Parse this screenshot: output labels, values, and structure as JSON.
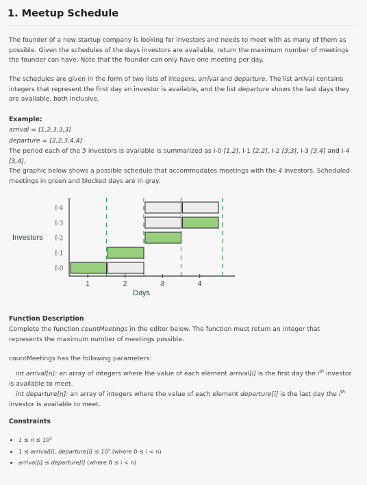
{
  "title": "1. Meetup Schedule",
  "intro": {
    "p1": "The founder of a new startup company is looking for investors and needs to meet with as many of them as possible. Given the schedules of the days investors are available, return the maximum number of meetings the founder can have. Note that the founder can only have one meeting per day.",
    "p2_a": "The schedules are given in the form of two lists of integers, ",
    "p2_arrival": "arrival",
    "p2_and": " and ",
    "p2_departure": "departure",
    "p2_b": ". The list ",
    "p2_arrival2": "arrival",
    "p2_c": " contains integers that represent the first day an investor is available, and the list ",
    "p2_departure2": "departure",
    "p2_d": " shows the last days they are available, both inclusive."
  },
  "example": {
    "heading": "Example:",
    "arrival": "arrival = [1,2,3,3,3]",
    "departure": "departure = [2,2,3,4,4]",
    "s1_a": "The period each of the ",
    "s1_n": "5",
    "s1_b": " investors is available is summarized as I-0 ",
    "s1_r0": "[1,2]",
    "s1_c": ", I-1 ",
    "s1_r1": "[2,2]",
    "s1_d": ", I-2 ",
    "s1_r2": "[3,3]",
    "s1_e": ", I-3 ",
    "s1_r3": "[3,4]",
    "s1_f": " and I-4 ",
    "s1_r4": "[3,4]",
    "s1_g": ".",
    "s2_a": "The graphic below shows a possible schedule that accommodates meetings with the ",
    "s2_n": "4",
    "s2_b": " investors. Scheduled meetings in green and blocked days are in gray."
  },
  "chart_data": {
    "type": "gantt",
    "ylabel": "Investors",
    "xlabel": "Days",
    "categories": [
      "I-0",
      "I-1",
      "I-2",
      "I-3",
      "I-4"
    ],
    "x_ticks": [
      "1",
      "2",
      "3",
      "4"
    ],
    "xlim": [
      1,
      4
    ],
    "bars": [
      {
        "investor": "I-0",
        "segments": [
          {
            "day": 1,
            "status": "meeting"
          },
          {
            "day": 2,
            "status": "blocked"
          }
        ]
      },
      {
        "investor": "I-1",
        "segments": [
          {
            "day": 2,
            "status": "meeting"
          }
        ]
      },
      {
        "investor": "I-2",
        "segments": [
          {
            "day": 3,
            "status": "meeting"
          }
        ]
      },
      {
        "investor": "I-3",
        "segments": [
          {
            "day": 3,
            "status": "blocked"
          },
          {
            "day": 4,
            "status": "meeting"
          }
        ]
      },
      {
        "investor": "I-4",
        "segments": [
          {
            "day": 3,
            "status": "blocked"
          },
          {
            "day": 4,
            "status": "blocked"
          }
        ]
      }
    ],
    "colors": {
      "meeting": "#98cf7d",
      "blocked": "#ececec",
      "outline": "#333333",
      "dash": "#2e9e4f"
    }
  },
  "function_description": {
    "heading": "Function Description",
    "a": "Complete the function ",
    "fn": "countMeetings",
    "b": " in the editor below. The function must return an integer that represents the maximum number of meetings possible."
  },
  "params": {
    "intro": "countMeetings has the following parameters:",
    "p1_sig": "int arrival[n]:",
    "p1_a": " an array of integers where the value of each element ",
    "p1_v": "arrival[i]",
    "p1_b": " is the first day the ",
    "p1_i": "i",
    "p1_th": "th",
    "p1_c": " investor is available to meet.",
    "p2_sig": "int departure[n]:",
    "p2_a": " an array of integers where the value of each element ",
    "p2_v": "departure[i]",
    "p2_b": " is the last day the ",
    "p2_i": "i",
    "p2_th": "th",
    "p2_c": " investor is available to meet."
  },
  "constraints": {
    "heading": "Constraints",
    "c1": "1 ≤ n ≤ 10⁵",
    "c2_a": "1 ≤ arrival[i], departure[i] ≤ 10⁵ ",
    "c2_b": "(where 0 ≤ i < n)",
    "c3_a": "arrival[i]  ≤ departure[i] ",
    "c3_b": "(where 0 ≤ i < n)"
  }
}
